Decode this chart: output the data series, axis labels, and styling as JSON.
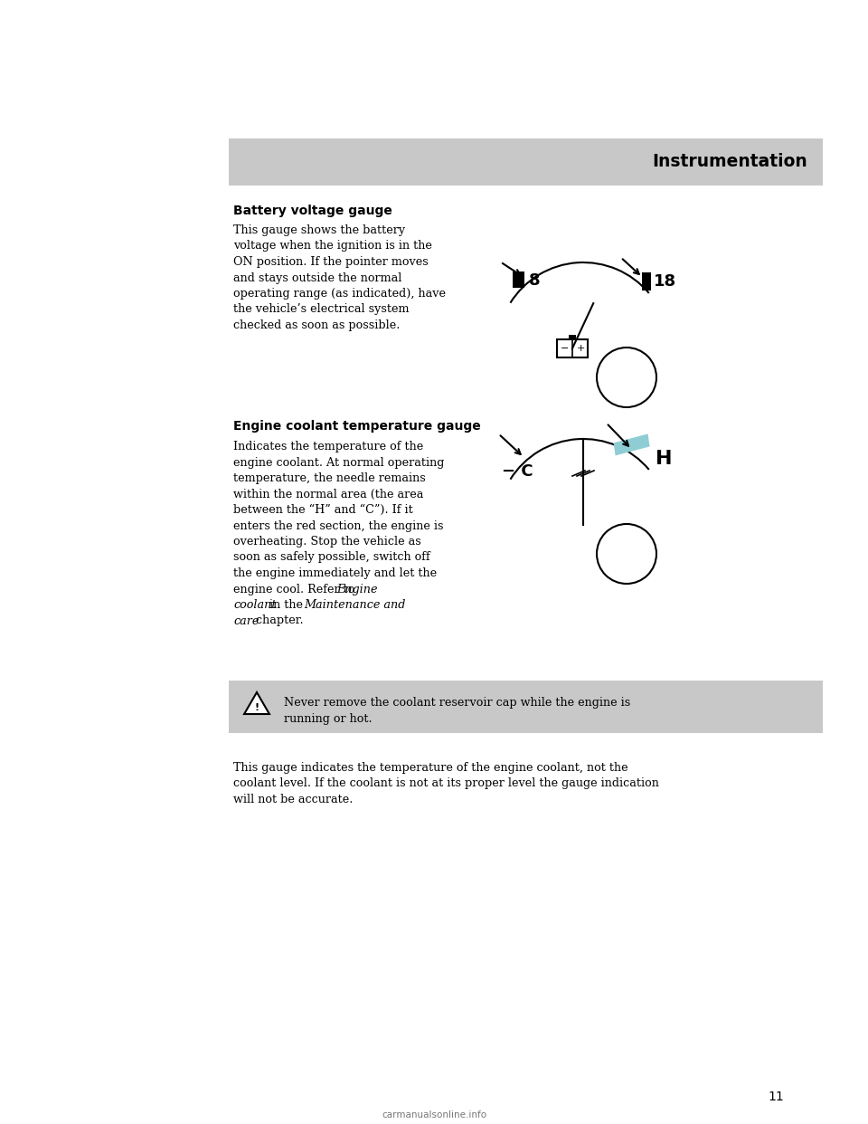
{
  "page_bg": "#ffffff",
  "header_bg": "#c8c8c8",
  "header_text": "Instrumentation",
  "page_number": "11",
  "section1_title": "Battery voltage gauge",
  "section1_body_lines": [
    "This gauge shows the battery",
    "voltage when the ignition is in the",
    "ON position. If the pointer moves",
    "and stays outside the normal",
    "operating range (as indicated), have",
    "the vehicle’s electrical system",
    "checked as soon as possible."
  ],
  "section2_title": "Engine coolant temperature gauge",
  "section2_body_lines": [
    [
      "Indicates the temperature of the",
      "normal"
    ],
    [
      "engine coolant. At normal operating",
      "normal"
    ],
    [
      "temperature, the needle remains",
      "normal"
    ],
    [
      "within the normal area (the area",
      "normal"
    ],
    [
      "between the “H” and “C”). If it",
      "normal"
    ],
    [
      "enters the red section, the engine is",
      "normal"
    ],
    [
      "overheating. Stop the vehicle as",
      "normal"
    ],
    [
      "soon as safely possible, switch off",
      "normal"
    ],
    [
      "the engine immediately and let the",
      "normal"
    ],
    [
      "engine cool. Refer to ",
      "normal"
    ],
    [
      "Engine",
      "italic"
    ],
    [
      "coolant",
      "italic"
    ],
    [
      " in the ",
      "normal"
    ],
    [
      "Maintenance and",
      "italic"
    ],
    [
      "care",
      "italic"
    ],
    [
      " chapter.",
      "normal"
    ]
  ],
  "warning_text_line1": "Never remove the coolant reservoir cap while the engine is",
  "warning_text_line2": "running or hot.",
  "footer_lines": [
    "This gauge indicates the temperature of the engine coolant, not the",
    "coolant level. If the coolant is not at its proper level the gauge indication",
    "will not be accurate."
  ],
  "watermark": "carmanualsonline.info",
  "teal_color": "#8ecdd4"
}
